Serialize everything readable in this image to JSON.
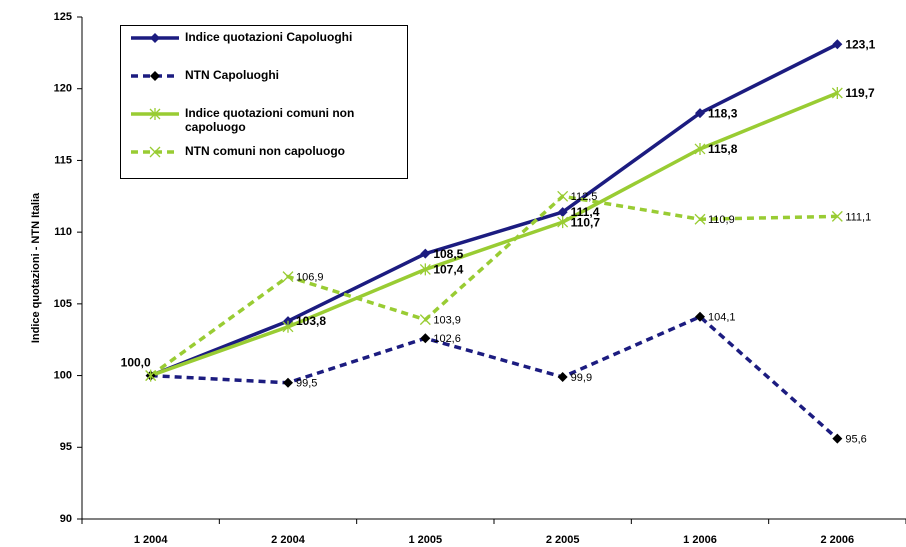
{
  "chart_data": {
    "type": "line",
    "y_label": "Indice quotazioni - NTN Italia",
    "categories": [
      "1  2004",
      "2  2004",
      "1  2005",
      "2  2005",
      "1  2006",
      "2  2006"
    ],
    "ylim": [
      90,
      125
    ],
    "yticks": [
      90,
      95,
      100,
      105,
      110,
      115,
      120,
      125
    ],
    "grid": false,
    "legend": "top-left",
    "series": [
      {
        "name": "Indice quotazioni Capoluoghi",
        "color": "#1c1c80",
        "marker": "diamond",
        "marker_color": "#1c1c80",
        "dashed": false,
        "bold_labels": true,
        "values": [
          100.0,
          103.8,
          108.5,
          111.4,
          118.3,
          123.1
        ],
        "value_labels": [
          "100,0",
          "103,8",
          "108,5",
          "111,4",
          "118,3",
          "123,1"
        ]
      },
      {
        "name": "NTN Capoluoghi",
        "color": "#1c1c80",
        "marker": "diamond",
        "marker_color": "#000000",
        "dashed": true,
        "bold_labels": false,
        "values": [
          100.0,
          99.5,
          102.6,
          99.9,
          104.1,
          95.6
        ],
        "value_labels": [
          null,
          "99,5",
          "102,6",
          "99,9",
          "104,1",
          "95,6"
        ]
      },
      {
        "name": "Indice quotazioni comuni non capoluogo",
        "color": "#99cc33",
        "marker": "star",
        "marker_color": "#99cc33",
        "dashed": false,
        "bold_labels": true,
        "values": [
          100.0,
          103.4,
          107.4,
          110.7,
          115.8,
          119.7
        ],
        "value_labels": [
          null,
          null,
          "107,4",
          "110,7",
          "115,8",
          "119,7"
        ]
      },
      {
        "name": "NTN comuni non capoluogo",
        "color": "#99cc33",
        "marker": "x",
        "marker_color": "#99cc33",
        "dashed": true,
        "bold_labels": false,
        "values": [
          100.0,
          106.9,
          103.9,
          112.5,
          110.9,
          111.1
        ],
        "value_labels": [
          null,
          "106,9",
          "103,9",
          "112,5",
          "110,9",
          "111,1"
        ]
      }
    ]
  }
}
